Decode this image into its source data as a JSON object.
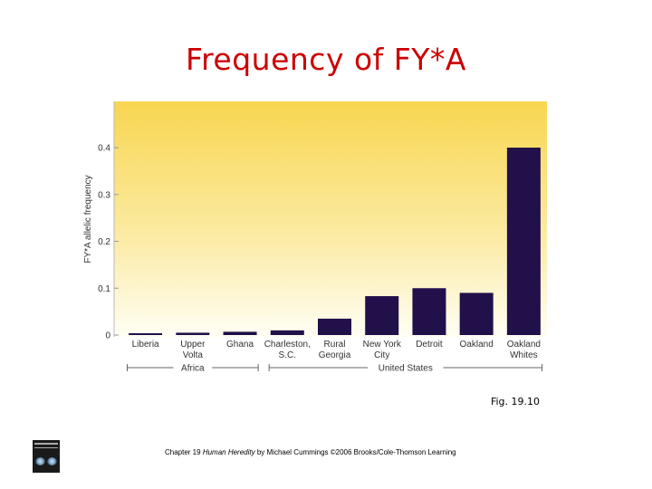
{
  "page": {
    "title": "Frequency of FY*A",
    "figure_label": "Fig. 19.10",
    "footer": {
      "prefix": "Chapter 19 ",
      "book_title": "Human Heredity",
      "suffix": " by Michael Cummings ©2006 Brooks/Cole-Thomson Learning"
    },
    "colors": {
      "title": "#cc0000",
      "bar": "#21104a",
      "plot_bg_top": "#f8d650",
      "plot_bg_bottom": "#fffef4"
    }
  },
  "chart_data": {
    "type": "bar",
    "ylabel": "FY*A allelic frequency",
    "xlabel": "",
    "ylim": [
      0,
      0.5
    ],
    "yticks": [
      0,
      0.1,
      0.2,
      0.3,
      0.4
    ],
    "ytick_labels": [
      "0",
      "0.1",
      "0.2",
      "0.3",
      "0.4"
    ],
    "grid": false,
    "categories": [
      [
        "Liberia"
      ],
      [
        "Upper",
        "Volta"
      ],
      [
        "Ghana"
      ],
      [
        "Charleston,",
        "S.C."
      ],
      [
        "Rural",
        "Georgia"
      ],
      [
        "New York",
        "City"
      ],
      [
        "Detroit"
      ],
      [
        "Oakland"
      ],
      [
        "Oakland",
        "Whites"
      ]
    ],
    "values": [
      0.003,
      0.005,
      0.007,
      0.01,
      0.035,
      0.083,
      0.1,
      0.09,
      0.4
    ],
    "groups": [
      {
        "label": "Africa",
        "start": 0,
        "end": 2
      },
      {
        "label": "United States",
        "start": 3,
        "end": 8
      }
    ]
  }
}
